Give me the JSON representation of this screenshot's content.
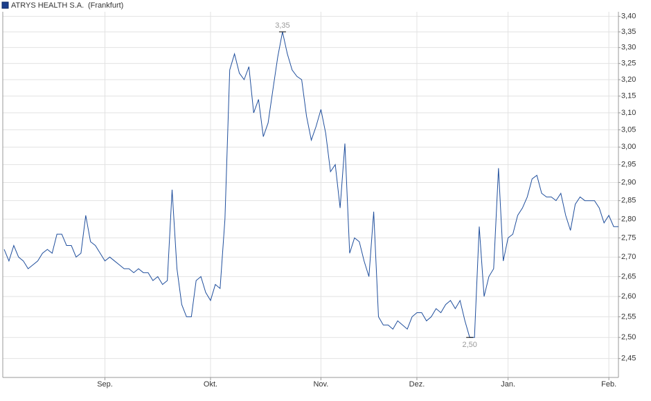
{
  "chart_data": {
    "type": "line",
    "subtitle": "(Frankfurt)",
    "categories": [
      null,
      null,
      null,
      null,
      null,
      null,
      null,
      null,
      null,
      null,
      null,
      null,
      null,
      null,
      null,
      null,
      null,
      null,
      null,
      null,
      null,
      "Sep.",
      null,
      null,
      null,
      null,
      null,
      null,
      null,
      null,
      null,
      null,
      null,
      null,
      null,
      null,
      null,
      null,
      null,
      null,
      null,
      null,
      null,
      "Okt.",
      null,
      null,
      null,
      null,
      null,
      null,
      null,
      null,
      null,
      null,
      null,
      null,
      null,
      null,
      null,
      null,
      null,
      null,
      null,
      null,
      null,
      null,
      "Nov.",
      null,
      null,
      null,
      null,
      null,
      null,
      null,
      null,
      null,
      null,
      null,
      null,
      null,
      null,
      null,
      null,
      null,
      null,
      null,
      "Dez.",
      null,
      null,
      null,
      null,
      null,
      null,
      null,
      null,
      null,
      null,
      null,
      null,
      null,
      null,
      null,
      null,
      null,
      null,
      "Jan.",
      null,
      null,
      null,
      null,
      null,
      null,
      null,
      null,
      null,
      null,
      null,
      null,
      null,
      null,
      null,
      null,
      null,
      null,
      null,
      null,
      "Feb.",
      null,
      null
    ],
    "series": [
      {
        "name": "ATRYS HEALTH S.A.",
        "color": "#1f4e9c",
        "values": [
          2.72,
          2.69,
          2.73,
          2.7,
          2.69,
          2.67,
          2.68,
          2.69,
          2.71,
          2.72,
          2.71,
          2.76,
          2.76,
          2.73,
          2.73,
          2.7,
          2.71,
          2.81,
          2.74,
          2.73,
          2.71,
          2.69,
          2.7,
          2.69,
          2.68,
          2.67,
          2.67,
          2.66,
          2.67,
          2.66,
          2.66,
          2.64,
          2.65,
          2.63,
          2.64,
          2.88,
          2.67,
          2.58,
          2.55,
          2.55,
          2.64,
          2.65,
          2.61,
          2.59,
          2.63,
          2.62,
          2.8,
          3.23,
          3.28,
          3.22,
          3.2,
          3.24,
          3.1,
          3.14,
          3.03,
          3.07,
          3.17,
          3.27,
          3.35,
          3.28,
          3.23,
          3.21,
          3.2,
          3.09,
          3.02,
          3.06,
          3.11,
          3.04,
          2.93,
          2.95,
          2.83,
          3.01,
          2.71,
          2.75,
          2.74,
          2.69,
          2.65,
          2.82,
          2.55,
          2.53,
          2.53,
          2.52,
          2.54,
          2.53,
          2.52,
          2.55,
          2.56,
          2.56,
          2.54,
          2.55,
          2.57,
          2.56,
          2.58,
          2.59,
          2.57,
          2.59,
          2.54,
          2.5,
          2.5,
          2.78,
          2.6,
          2.65,
          2.67,
          2.94,
          2.69,
          2.75,
          2.76,
          2.81,
          2.83,
          2.86,
          2.91,
          2.92,
          2.87,
          2.86,
          2.86,
          2.85,
          2.87,
          2.81,
          2.77,
          2.84,
          2.86,
          2.85,
          2.85,
          2.85,
          2.83,
          2.79,
          2.81,
          2.78,
          2.78
        ],
        "value_labels": [
          null,
          null,
          null,
          null,
          null,
          null,
          null,
          null,
          null,
          null,
          null,
          null,
          null,
          null,
          null,
          null,
          null,
          null,
          null,
          null,
          null,
          null,
          null,
          null,
          null,
          null,
          null,
          null,
          null,
          null,
          null,
          null,
          null,
          null,
          null,
          null,
          null,
          null,
          null,
          null,
          null,
          null,
          null,
          null,
          null,
          null,
          null,
          null,
          null,
          null,
          null,
          null,
          null,
          null,
          null,
          null,
          null,
          null,
          "3,35",
          null,
          null,
          null,
          null,
          null,
          null,
          null,
          null,
          null,
          null,
          null,
          null,
          null,
          null,
          null,
          null,
          null,
          null,
          null,
          null,
          null,
          null,
          null,
          null,
          null,
          null,
          null,
          null,
          null,
          null,
          null,
          null,
          null,
          null,
          null,
          null,
          null,
          null,
          "2,50",
          null,
          null,
          null,
          null,
          null,
          null,
          null,
          null,
          null,
          null,
          null,
          null,
          null,
          null,
          null,
          null,
          null,
          null,
          null,
          null,
          null,
          null,
          null,
          null,
          null,
          null,
          null,
          null,
          null,
          null,
          null
        ]
      }
    ],
    "ylim": [
      2.406,
      3.415
    ],
    "ylog": true,
    "yticks": [
      {
        "value": 2.45,
        "label": "2,45"
      },
      {
        "value": 2.5,
        "label": "2,50"
      },
      {
        "value": 2.55,
        "label": "2,55"
      },
      {
        "value": 2.6,
        "label": "2,60"
      },
      {
        "value": 2.65,
        "label": "2,65"
      },
      {
        "value": 2.7,
        "label": "2,70"
      },
      {
        "value": 2.75,
        "label": "2,75"
      },
      {
        "value": 2.8,
        "label": "2,80"
      },
      {
        "value": 2.85,
        "label": "2,85"
      },
      {
        "value": 2.9,
        "label": "2,90"
      },
      {
        "value": 2.95,
        "label": "2,95"
      },
      {
        "value": 3.0,
        "label": "3,00"
      },
      {
        "value": 3.05,
        "label": "3,05"
      },
      {
        "value": 3.1,
        "label": "3,10"
      },
      {
        "value": 3.15,
        "label": "3,15"
      },
      {
        "value": 3.2,
        "label": "3,20"
      },
      {
        "value": 3.25,
        "label": "3,25"
      },
      {
        "value": 3.3,
        "label": "3,30"
      },
      {
        "value": 3.35,
        "label": "3,35"
      },
      {
        "value": 3.4,
        "label": "3,40"
      }
    ],
    "grid": true
  }
}
